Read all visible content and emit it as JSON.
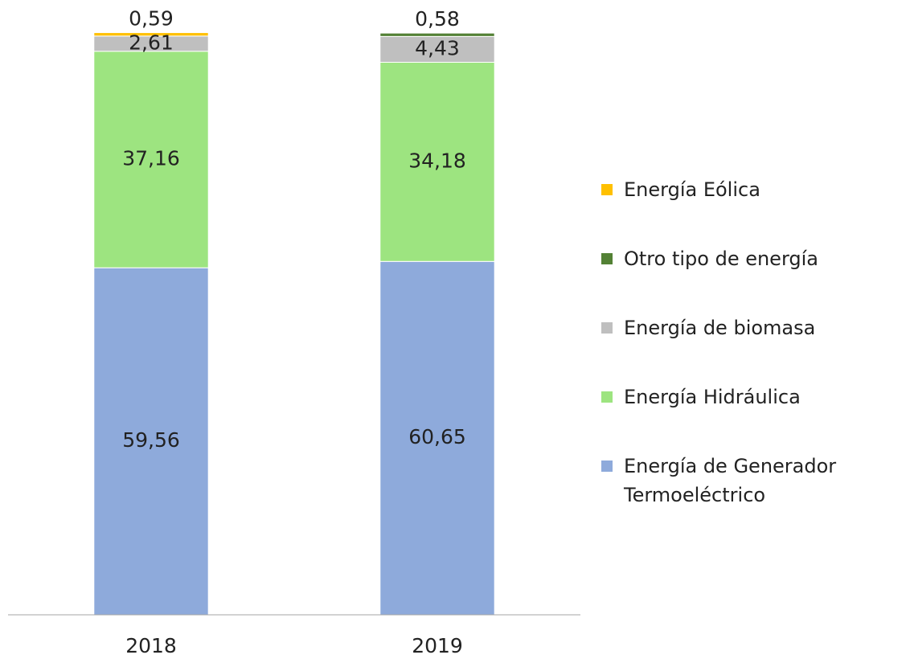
{
  "chart_data": {
    "type": "stacked_bar",
    "categories": [
      "2018",
      "2019"
    ],
    "ylim": [
      0,
      100
    ],
    "series": [
      {
        "name": "Energía de Generador Termoeléctrico",
        "color": "#8eaadb",
        "values": [
          59.56,
          60.65
        ],
        "value_labels": [
          "59,56",
          "60,65"
        ]
      },
      {
        "name": "Energía Hidráulica",
        "color": "#9de480",
        "values": [
          37.16,
          34.18
        ],
        "value_labels": [
          "37,16",
          "34,18"
        ]
      },
      {
        "name": "Energía de biomasa",
        "color": "#bfbfbf",
        "values": [
          2.61,
          4.43
        ],
        "value_labels": [
          "2,61",
          "4,43"
        ]
      },
      {
        "name": "Otro tipo de energía",
        "color": "#538135",
        "values": [
          null,
          0.58
        ],
        "value_labels": [
          null,
          "0,58"
        ]
      },
      {
        "name": "Energía Eólica",
        "color": "#ffc000",
        "values": [
          0.59,
          null
        ],
        "value_labels": [
          "0,59",
          null
        ]
      }
    ]
  }
}
